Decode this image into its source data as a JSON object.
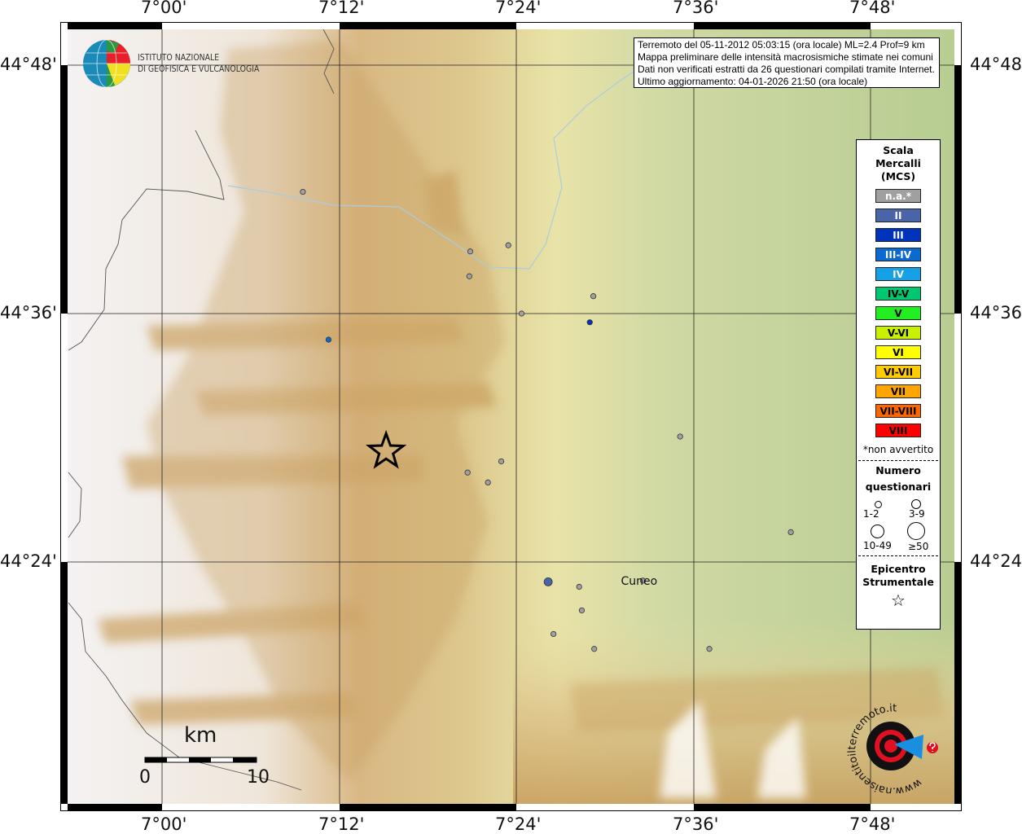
{
  "axes": {
    "lon_ticks": [
      "7°00'",
      "7°12'",
      "7°24'",
      "7°36'",
      "7°48'"
    ],
    "lat_ticks": [
      "44°48'",
      "44°36'",
      "44°24'"
    ]
  },
  "info": {
    "line1": "Terremoto del 05-11-2012 05:03:15 (ora locale) ML=2.4 Prof=9 km",
    "line2": "Mappa preliminare delle intensità macrosismiche stimate nei comuni",
    "line3": "Dati non verificati estratti da 26 questionari compilati tramite Internet.",
    "line4": "Ultimo aggiornamento: 04-01-2026 21:50 (ora locale)"
  },
  "ingv_logo": {
    "line1": "ISTITUTO NAZIONALE",
    "line2": "DI GEOFISICA E VULCANOLOGIA"
  },
  "hsit_logo": {
    "text": "www.haisentitoilterremoto.it"
  },
  "legend": {
    "title": [
      "Scala",
      "Mercalli",
      "(MCS)"
    ],
    "classes": [
      {
        "label": "n.a.*",
        "color": "#a0a0a0",
        "text": "#ffffff"
      },
      {
        "label": "II",
        "color": "#4a64a8",
        "text": "#ffffff"
      },
      {
        "label": "III",
        "color": "#0033bb",
        "text": "#ffffff"
      },
      {
        "label": "III-IV",
        "color": "#0a6ad0",
        "text": "#ffffff"
      },
      {
        "label": "IV",
        "color": "#16a0e6",
        "text": "#ffffff"
      },
      {
        "label": "IV-V",
        "color": "#00c870",
        "text": "#000000"
      },
      {
        "label": "V",
        "color": "#22ee22",
        "text": "#000000"
      },
      {
        "label": "V-VI",
        "color": "#c8f000",
        "text": "#000000"
      },
      {
        "label": "VI",
        "color": "#ffff00",
        "text": "#000000"
      },
      {
        "label": "VI-VII",
        "color": "#ffcc00",
        "text": "#000000"
      },
      {
        "label": "VII",
        "color": "#ffa500",
        "text": "#000000"
      },
      {
        "label": "VII-VIII",
        "color": "#ff6600",
        "text": "#000000"
      },
      {
        "label": "VIII",
        "color": "#ff0000",
        "text": "#000000"
      }
    ],
    "na_note": "*non avvertito",
    "count_title": [
      "Numero",
      "questionari"
    ],
    "counts": [
      "1-2",
      "3-9",
      "10-49",
      "≥50"
    ],
    "epicenter_title": [
      "Epicentro",
      "Strumentale"
    ]
  },
  "scalebar": {
    "unit": "km",
    "min": "0",
    "max": "10"
  },
  "places": [
    {
      "name": "Cuneo",
      "lon": 7.543,
      "lat": 44.385
    }
  ],
  "epicenter": {
    "lon": 7.253,
    "lat": 44.489
  },
  "observations": [
    {
      "lon": 7.159,
      "lat": 44.698,
      "mcs": "n.a.*",
      "size": "1-2"
    },
    {
      "lon": 7.348,
      "lat": 44.65,
      "mcs": "n.a.*",
      "size": "1-2"
    },
    {
      "lon": 7.391,
      "lat": 44.655,
      "mcs": "n.a.*",
      "size": "1-2"
    },
    {
      "lon": 7.347,
      "lat": 44.63,
      "mcs": "n.a.*",
      "size": "1-2"
    },
    {
      "lon": 7.487,
      "lat": 44.614,
      "mcs": "n.a.*",
      "size": "1-2"
    },
    {
      "lon": 7.406,
      "lat": 44.6,
      "mcs": "n.a.*",
      "size": "1-2"
    },
    {
      "lon": 7.483,
      "lat": 44.593,
      "mcs": "III",
      "size": "1-2"
    },
    {
      "lon": 7.188,
      "lat": 44.579,
      "mcs": "III-IV",
      "size": "1-2"
    },
    {
      "lon": 7.585,
      "lat": 44.501,
      "mcs": "n.a.*",
      "size": "1-2"
    },
    {
      "lon": 7.383,
      "lat": 44.481,
      "mcs": "n.a.*",
      "size": "1-2"
    },
    {
      "lon": 7.345,
      "lat": 44.472,
      "mcs": "n.a.*",
      "size": "1-2"
    },
    {
      "lon": 7.368,
      "lat": 44.464,
      "mcs": "n.a.*",
      "size": "1-2"
    },
    {
      "lon": 7.71,
      "lat": 44.424,
      "mcs": "n.a.*",
      "size": "1-2"
    },
    {
      "lon": 7.436,
      "lat": 44.384,
      "mcs": "II",
      "size": "3-9"
    },
    {
      "lon": 7.471,
      "lat": 44.38,
      "mcs": "n.a.*",
      "size": "1-2"
    },
    {
      "lon": 7.543,
      "lat": 44.385,
      "mcs": "n.a.*",
      "size": "1-2"
    },
    {
      "lon": 7.474,
      "lat": 44.361,
      "mcs": "n.a.*",
      "size": "1-2"
    },
    {
      "lon": 7.442,
      "lat": 44.342,
      "mcs": "n.a.*",
      "size": "1-2"
    },
    {
      "lon": 7.488,
      "lat": 44.33,
      "mcs": "n.a.*",
      "size": "1-2"
    },
    {
      "lon": 7.618,
      "lat": 44.33,
      "mcs": "n.a.*",
      "size": "1-2"
    }
  ]
}
